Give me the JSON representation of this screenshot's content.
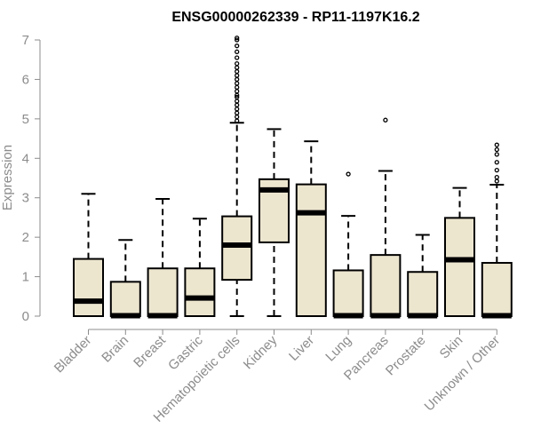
{
  "chart_data": {
    "type": "boxplot",
    "title": "ENSG00000262339 - RP11-1197K16.2",
    "xlabel": "",
    "ylabel": "Expression",
    "ylim": [
      0,
      7
    ],
    "yticks": [
      0,
      1,
      2,
      3,
      4,
      5,
      6,
      7
    ],
    "grid": false,
    "legend": "none",
    "categories": [
      "Bladder",
      "Brain",
      "Breast",
      "Gastric",
      "Hematopoietic cells",
      "Kidney",
      "Liver",
      "Lung",
      "Pancreas",
      "Prostate",
      "Skin",
      "Unknown / Other"
    ],
    "boxes": [
      {
        "name": "Bladder",
        "whisker_low": 0,
        "q1": 0,
        "median": 0.38,
        "q3": 1.45,
        "whisker_high": 3.1,
        "outliers": []
      },
      {
        "name": "Brain",
        "whisker_low": 0,
        "q1": 0,
        "median": 0.01,
        "q3": 0.87,
        "whisker_high": 1.93,
        "outliers": []
      },
      {
        "name": "Breast",
        "whisker_low": 0,
        "q1": 0,
        "median": 0.01,
        "q3": 1.21,
        "whisker_high": 2.97,
        "outliers": []
      },
      {
        "name": "Gastric",
        "whisker_low": 0,
        "q1": 0,
        "median": 0.46,
        "q3": 1.21,
        "whisker_high": 2.47,
        "outliers": []
      },
      {
        "name": "Hematopoietic cells",
        "whisker_low": 0,
        "q1": 0.92,
        "median": 1.8,
        "q3": 2.53,
        "whisker_high": 4.9,
        "outliers": [
          4.95,
          5.05,
          5.15,
          5.25,
          5.35,
          5.45,
          5.55,
          5.6,
          5.7,
          5.8,
          5.9,
          6.0,
          6.1,
          6.2,
          6.3,
          6.4,
          6.55,
          6.7,
          6.85,
          7.0,
          7.05
        ]
      },
      {
        "name": "Kidney",
        "whisker_low": 0,
        "q1": 1.87,
        "median": 3.2,
        "q3": 3.47,
        "whisker_high": 4.74,
        "outliers": []
      },
      {
        "name": "Liver",
        "whisker_low": 0,
        "q1": 0,
        "median": 2.62,
        "q3": 3.34,
        "whisker_high": 4.43,
        "outliers": []
      },
      {
        "name": "Lung",
        "whisker_low": 0,
        "q1": 0,
        "median": 0.01,
        "q3": 1.16,
        "whisker_high": 2.54,
        "outliers": [
          3.6
        ]
      },
      {
        "name": "Pancreas",
        "whisker_low": 0,
        "q1": 0,
        "median": 0.01,
        "q3": 1.55,
        "whisker_high": 3.68,
        "outliers": [
          4.97
        ]
      },
      {
        "name": "Prostate",
        "whisker_low": 0,
        "q1": 0,
        "median": 0.01,
        "q3": 1.12,
        "whisker_high": 2.06,
        "outliers": []
      },
      {
        "name": "Skin",
        "whisker_low": 0,
        "q1": 0,
        "median": 1.43,
        "q3": 2.49,
        "whisker_high": 3.25,
        "outliers": []
      },
      {
        "name": "Unknown / Other",
        "whisker_low": 0,
        "q1": 0,
        "median": 0.01,
        "q3": 1.35,
        "whisker_high": 3.33,
        "outliers": [
          3.42,
          3.52,
          3.7,
          3.9,
          4.1,
          4.22,
          4.34
        ]
      }
    ],
    "colors": {
      "box_fill": "#ede6cf",
      "box_stroke": "#000000",
      "axis": "#8c8c8c",
      "text_muted": "#8c8c8c",
      "title": "#000000"
    }
  }
}
